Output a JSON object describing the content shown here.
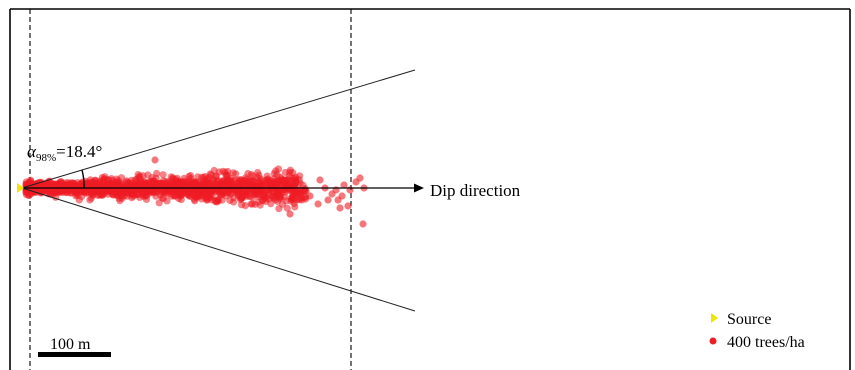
{
  "angle_label": {
    "symbol": "α",
    "subscript": "98%",
    "value": "=18.4°"
  },
  "arrow_label": "Dip direction",
  "scale_bar": {
    "label": "100 m"
  },
  "legend": {
    "items": [
      {
        "marker": "triangle",
        "color": "#f2e600",
        "label": "Source"
      },
      {
        "marker": "circle",
        "color": "#ee1c24",
        "label": "400 trees/ha"
      }
    ]
  },
  "colors": {
    "frame": "#000000",
    "points": "#ee1c24",
    "source": "#f2e600",
    "lines": "#222222"
  },
  "scatter": {
    "point_count": 1400,
    "seed": 7
  }
}
